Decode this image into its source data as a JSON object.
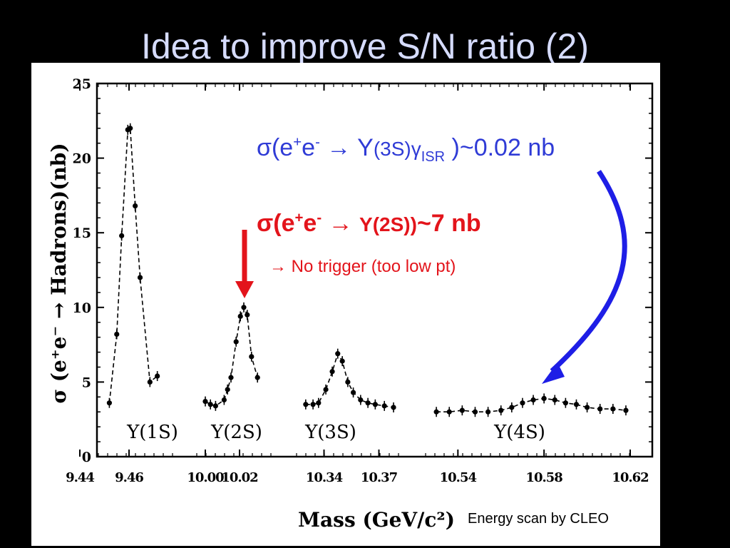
{
  "slide": {
    "title": "Idea to improve S/N ratio (2)",
    "credit": "Energy scan by CLEO"
  },
  "annotations": {
    "isr_prefix": "σ(e",
    "isr_plus": "+",
    "isr_e": "e",
    "isr_minus": "-",
    "isr_arrow": " → Y",
    "isr_state": "(3S)",
    "isr_gamma": "γ",
    "isr_sub": "ISR",
    "isr_value": " )~0.02 nb",
    "y2s_prefix": "σ(e",
    "y2s_plus": "+",
    "y2s_e": "e",
    "y2s_minus": "-",
    "y2s_arrow": " → ",
    "y2s_state": "Y(2S))",
    "y2s_value": "~7 nb",
    "trigger_note": "→ No trigger (too low pt)",
    "arrow_color_red": "#e3141b",
    "arrow_color_blue": "#1e1ee6"
  },
  "chart_data": {
    "type": "scatter",
    "ylabel": "σ (e⁺e⁻ → Hadrons)(nb)",
    "xlabel": "Mass (GeV/c²)",
    "ylim": [
      0,
      25
    ],
    "y_ticks": [
      0,
      5,
      10,
      15,
      20,
      25
    ],
    "x_tick_labels": [
      "9.44",
      "9.46",
      "10.00",
      "10.02",
      "10.34",
      "10.37",
      "10.54",
      "10.58",
      "10.62"
    ],
    "peak_labels": [
      "Υ(1S)",
      "Υ(2S)",
      "Υ(3S)",
      "Υ(4S)"
    ],
    "panels": [
      {
        "name": "Υ(1S)",
        "xlim": [
          9.44,
          9.48
        ],
        "points": [
          [
            9.452,
            3.6
          ],
          [
            9.455,
            8.2
          ],
          [
            9.457,
            14.8
          ],
          [
            9.4595,
            21.9
          ],
          [
            9.4605,
            22.0
          ],
          [
            9.4625,
            16.8
          ],
          [
            9.4645,
            12.0
          ],
          [
            9.4685,
            5.0
          ],
          [
            9.4715,
            5.4
          ]
        ]
      },
      {
        "name": "Υ(2S)",
        "xlim": [
          9.995,
          10.04
        ],
        "points": [
          [
            10.0,
            3.7
          ],
          [
            10.003,
            3.5
          ],
          [
            10.006,
            3.4
          ],
          [
            10.011,
            3.8
          ],
          [
            10.013,
            4.5
          ],
          [
            10.015,
            5.3
          ],
          [
            10.018,
            7.7
          ],
          [
            10.0205,
            9.4
          ],
          [
            10.0225,
            10.0
          ],
          [
            10.0245,
            9.5
          ],
          [
            10.027,
            6.7
          ],
          [
            10.0305,
            5.3
          ]
        ]
      },
      {
        "name": "Υ(3S)",
        "xlim": [
          10.325,
          10.385
        ],
        "points": [
          [
            10.33,
            3.5
          ],
          [
            10.334,
            3.5
          ],
          [
            10.337,
            3.6
          ],
          [
            10.341,
            4.5
          ],
          [
            10.3445,
            5.7
          ],
          [
            10.3475,
            6.9
          ],
          [
            10.35,
            6.4
          ],
          [
            10.353,
            5.0
          ],
          [
            10.356,
            4.3
          ],
          [
            10.36,
            3.8
          ],
          [
            10.364,
            3.6
          ],
          [
            10.368,
            3.5
          ],
          [
            10.373,
            3.4
          ],
          [
            10.378,
            3.3
          ]
        ]
      },
      {
        "name": "Υ(4S)",
        "xlim": [
          10.525,
          10.62
        ],
        "points": [
          [
            10.53,
            3.0
          ],
          [
            10.536,
            3.0
          ],
          [
            10.542,
            3.1
          ],
          [
            10.548,
            3.0
          ],
          [
            10.554,
            3.0
          ],
          [
            10.56,
            3.1
          ],
          [
            10.565,
            3.3
          ],
          [
            10.57,
            3.6
          ],
          [
            10.575,
            3.8
          ],
          [
            10.58,
            3.9
          ],
          [
            10.585,
            3.8
          ],
          [
            10.59,
            3.6
          ],
          [
            10.595,
            3.5
          ],
          [
            10.6,
            3.3
          ],
          [
            10.606,
            3.2
          ],
          [
            10.612,
            3.2
          ],
          [
            10.618,
            3.1
          ]
        ]
      }
    ]
  }
}
